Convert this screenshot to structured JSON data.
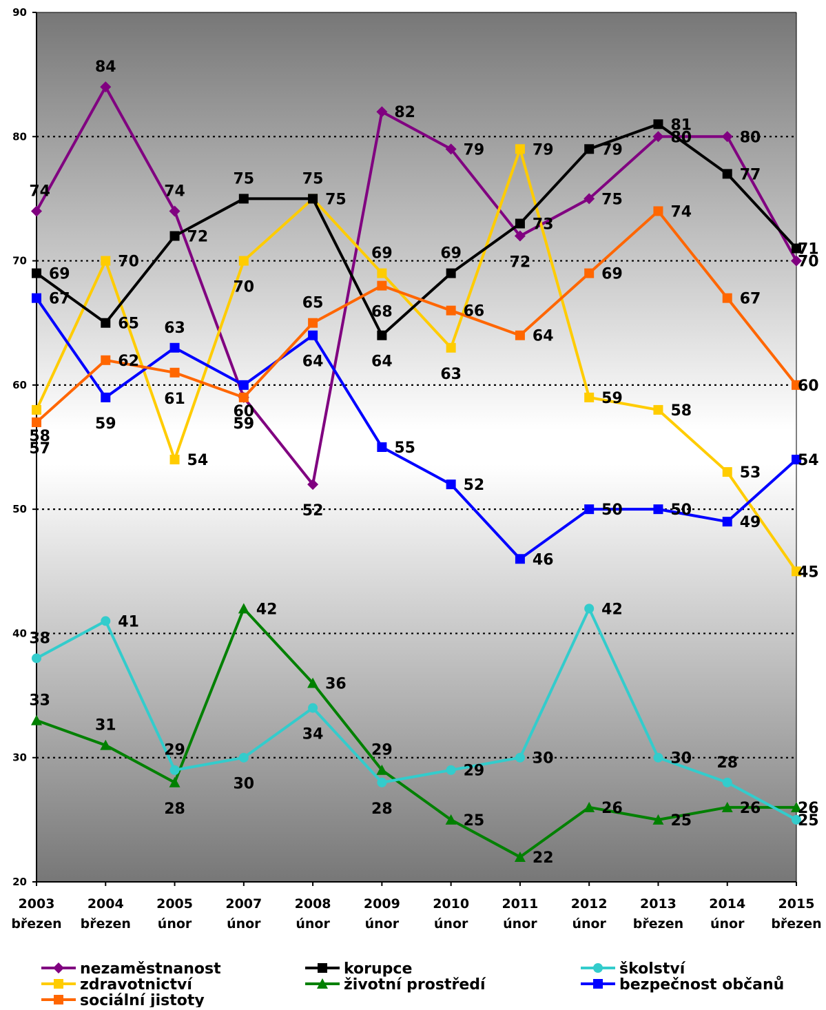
{
  "chart_data": {
    "type": "line",
    "categories": [
      [
        "2003",
        "březen"
      ],
      [
        "2004",
        "březen"
      ],
      [
        "2005",
        "únor"
      ],
      [
        "2007",
        "únor"
      ],
      [
        "2008",
        "únor"
      ],
      [
        "2009",
        "únor"
      ],
      [
        "2010",
        "únor"
      ],
      [
        "2011",
        "únor"
      ],
      [
        "2012",
        "únor"
      ],
      [
        "2013",
        "březen"
      ],
      [
        "2014",
        "únor"
      ],
      [
        "2015",
        "březen"
      ]
    ],
    "ylim": [
      20,
      90
    ],
    "yticks": [
      "20",
      "30",
      "40",
      "50",
      "60",
      "70",
      "80",
      "90"
    ],
    "gridlines": [
      30,
      40,
      50,
      60,
      70,
      80
    ],
    "legend_position": "bottom",
    "series": [
      {
        "name": "nezaměstnanost",
        "color": "#800080",
        "marker": "diamond",
        "values": [
          74,
          84,
          74,
          59,
          52,
          82,
          79,
          72,
          75,
          80,
          80,
          70
        ]
      },
      {
        "name": "zdravotnictví",
        "color": "#FFCC00",
        "marker": "square",
        "values": [
          58,
          70,
          54,
          70,
          75,
          69,
          63,
          79,
          59,
          58,
          53,
          45
        ]
      },
      {
        "name": "korupce",
        "color": "#000000",
        "marker": "square",
        "values": [
          69,
          65,
          72,
          75,
          75,
          64,
          69,
          73,
          79,
          81,
          77,
          71
        ]
      },
      {
        "name": "životní prostředí",
        "color": "#008000",
        "marker": "triangle",
        "values": [
          33,
          31,
          28,
          42,
          36,
          29,
          25,
          22,
          26,
          25,
          26,
          26
        ]
      },
      {
        "name": "školství",
        "color": "#33CCCC",
        "marker": "circle",
        "values": [
          38,
          41,
          29,
          30,
          34,
          28,
          29,
          30,
          42,
          30,
          28,
          25
        ]
      },
      {
        "name": "bezpečnost občanů",
        "color": "#0000FF",
        "marker": "square",
        "values": [
          67,
          59,
          63,
          60,
          64,
          55,
          52,
          46,
          50,
          50,
          49,
          54
        ]
      },
      {
        "name": "sociální jistoty",
        "color": "#FF6600",
        "marker": "square",
        "values": [
          57,
          62,
          61,
          59,
          65,
          68,
          66,
          64,
          69,
          74,
          67,
          60
        ]
      }
    ]
  }
}
